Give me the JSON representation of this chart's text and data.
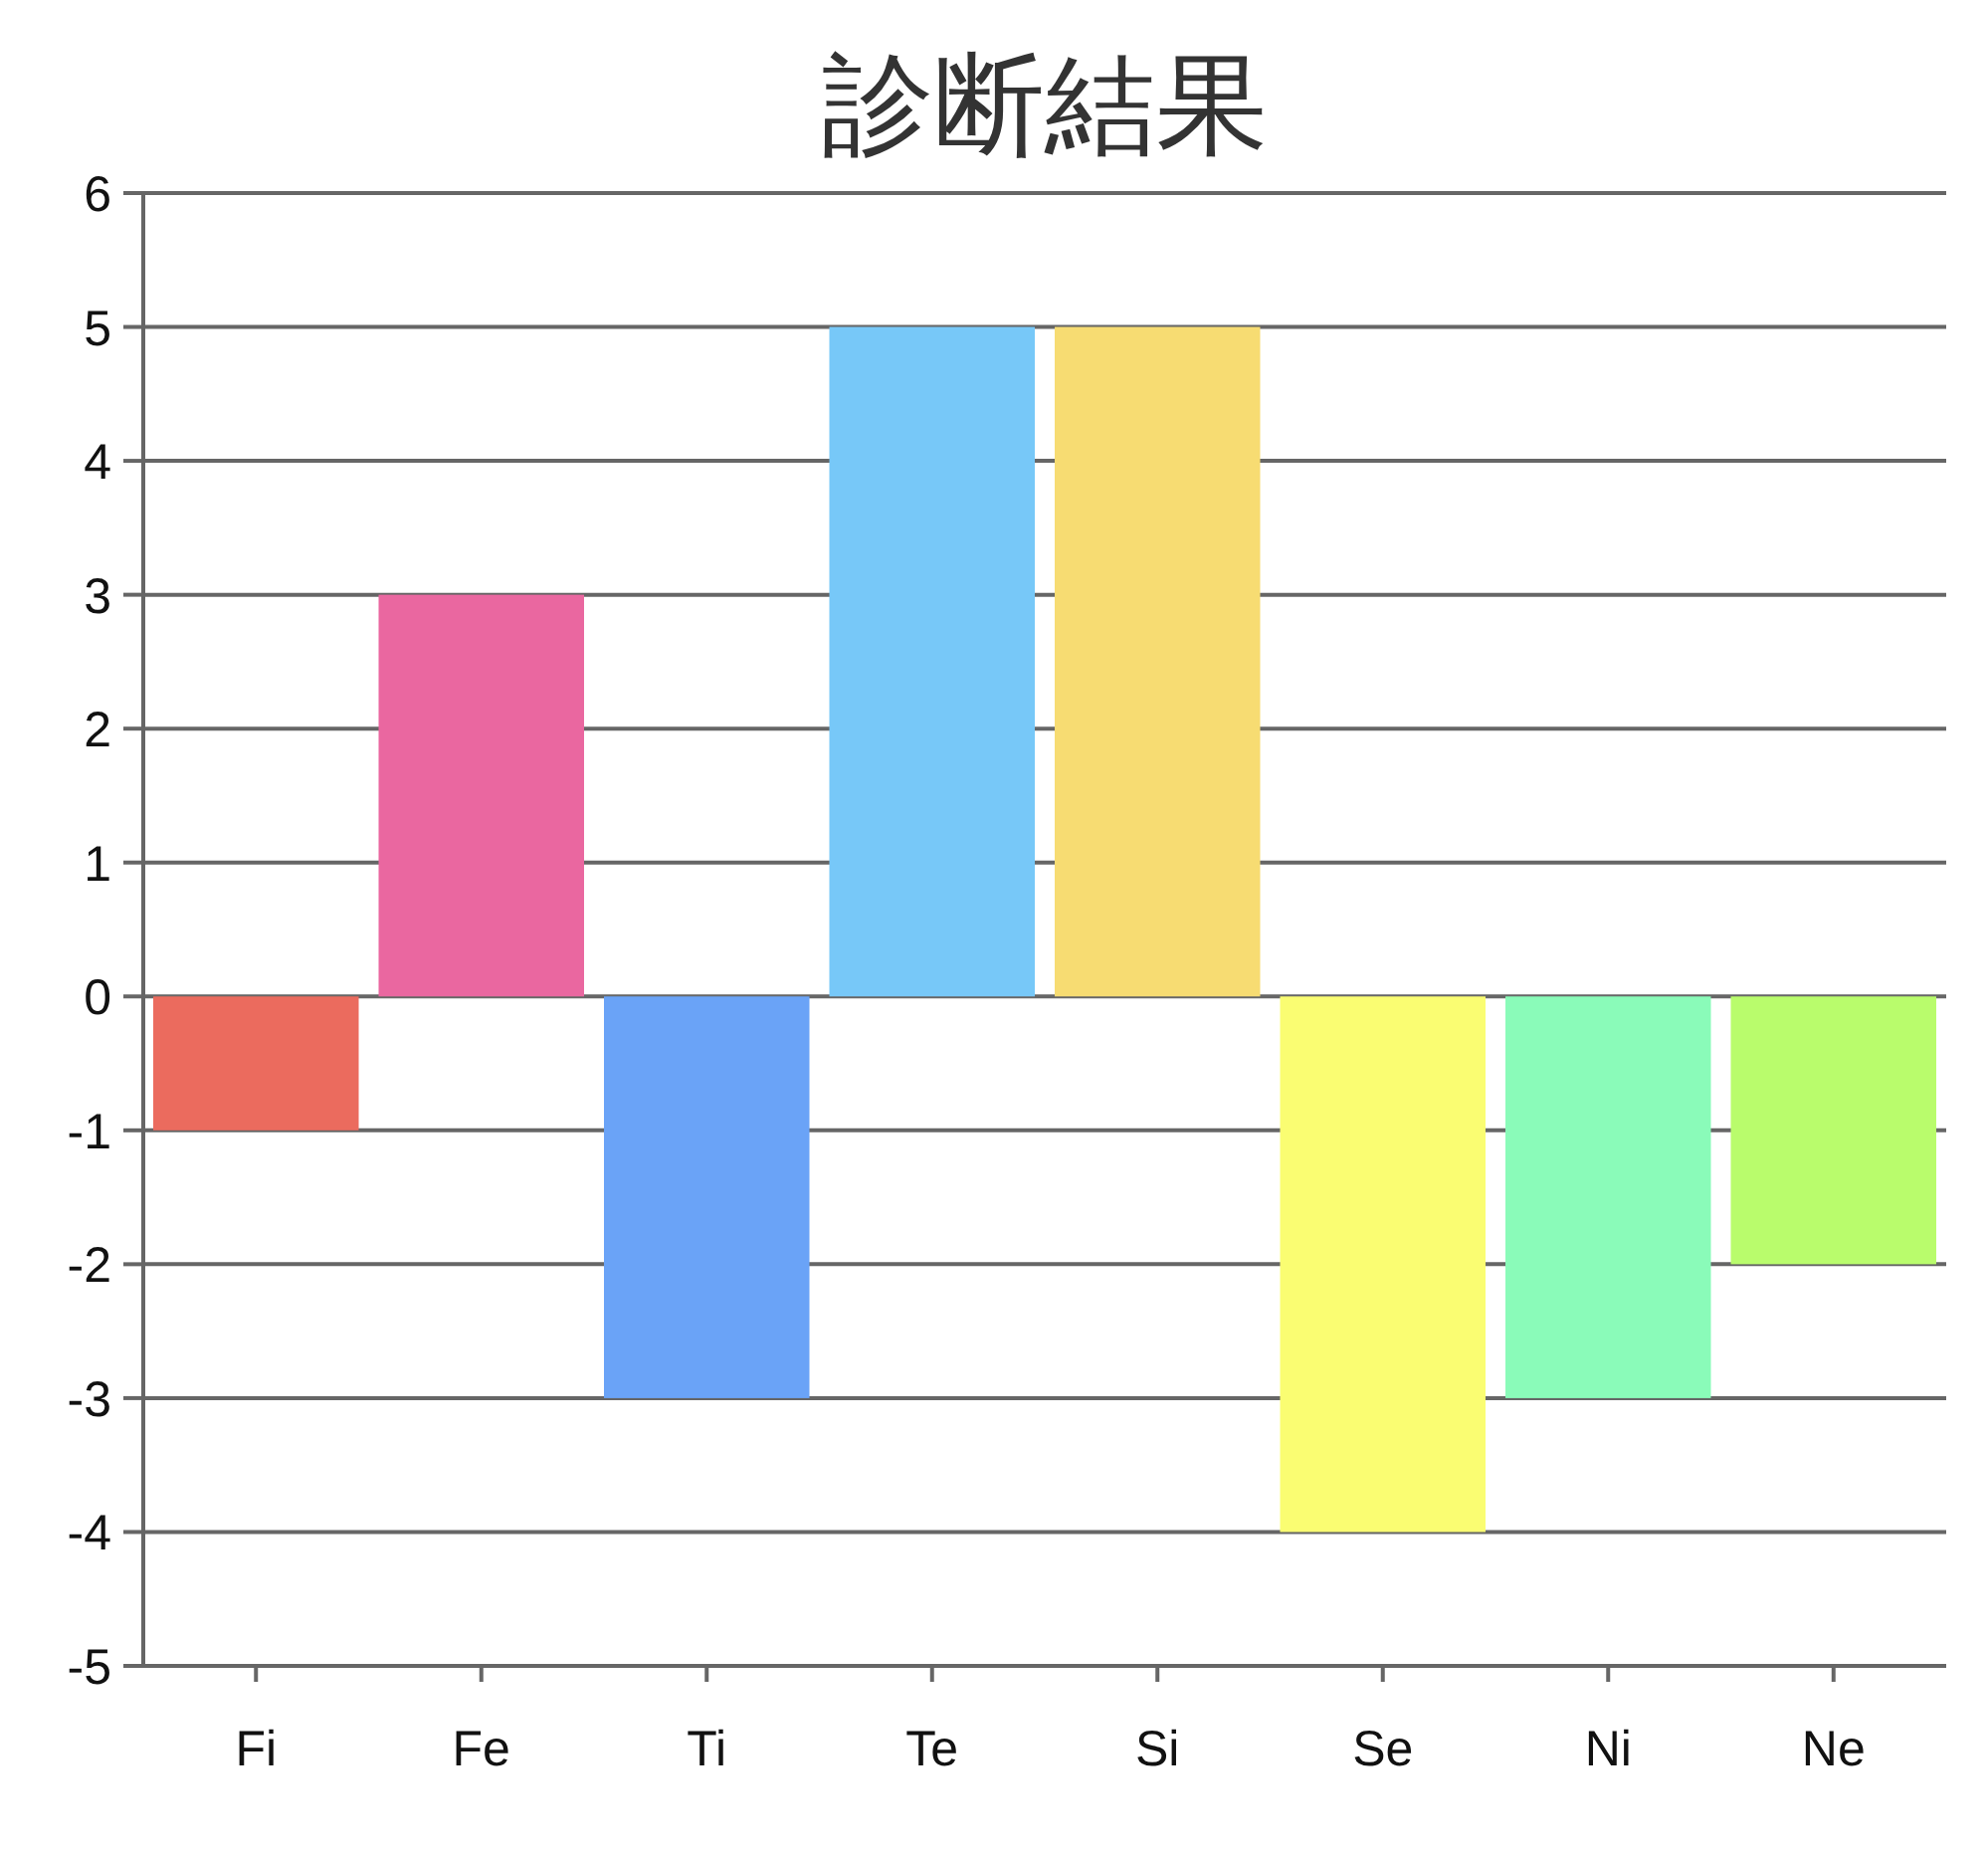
{
  "chart_data": {
    "type": "bar",
    "title": "診断結果",
    "categories": [
      "Fi",
      "Fe",
      "Ti",
      "Te",
      "Si",
      "Se",
      "Ni",
      "Ne"
    ],
    "values": [
      -1,
      3,
      -3,
      5,
      5,
      -4,
      -3,
      -2
    ],
    "colors": [
      "#eb6b5e",
      "#ea67a0",
      "#6aa3f7",
      "#77c8f8",
      "#f7dc72",
      "#fafd72",
      "#8afbb9",
      "#b9fc6c"
    ],
    "ylim": [
      -5,
      6
    ],
    "yticks": [
      -5,
      -4,
      -3,
      -2,
      -1,
      0,
      1,
      2,
      3,
      4,
      5,
      6
    ],
    "grid": "y"
  }
}
